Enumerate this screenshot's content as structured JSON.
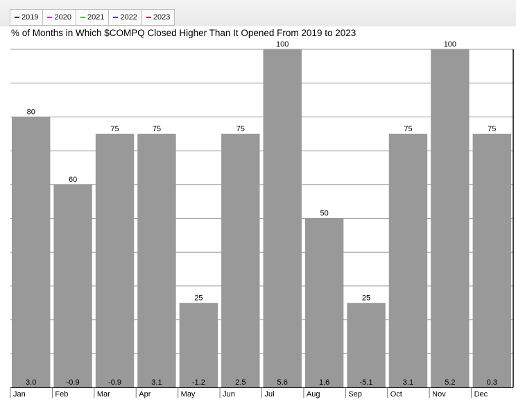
{
  "legend": {
    "items": [
      {
        "label": "2019",
        "color": "#333333"
      },
      {
        "label": "2020",
        "color": "#cc33cc"
      },
      {
        "label": "2021",
        "color": "#33cc33"
      },
      {
        "label": "2022",
        "color": "#6633aa"
      },
      {
        "label": "2023",
        "color": "#cc2222"
      }
    ]
  },
  "chart_data": {
    "type": "bar",
    "title": "% of Months in Which $COMPQ Closed Higher Than It Opened From 2019 to 2023",
    "categories": [
      "Jan",
      "Feb",
      "Mar",
      "Apr",
      "May",
      "Jun",
      "Jul",
      "Aug",
      "Sep",
      "Oct",
      "Nov",
      "Dec"
    ],
    "values": [
      80,
      60,
      75,
      75,
      25,
      75,
      100,
      50,
      25,
      75,
      100,
      75
    ],
    "secondary_labels": [
      "3.0",
      "-0.9",
      "-0.9",
      "3.1",
      "-1.2",
      "2.5",
      "5.6",
      "1.6",
      "-5.1",
      "3.1",
      "5.2",
      "0.3"
    ],
    "ylim": [
      0,
      100
    ],
    "grid": true,
    "bar_color": "#999999",
    "grid_color": "#9a9a9a",
    "legend_position": "top-left"
  }
}
